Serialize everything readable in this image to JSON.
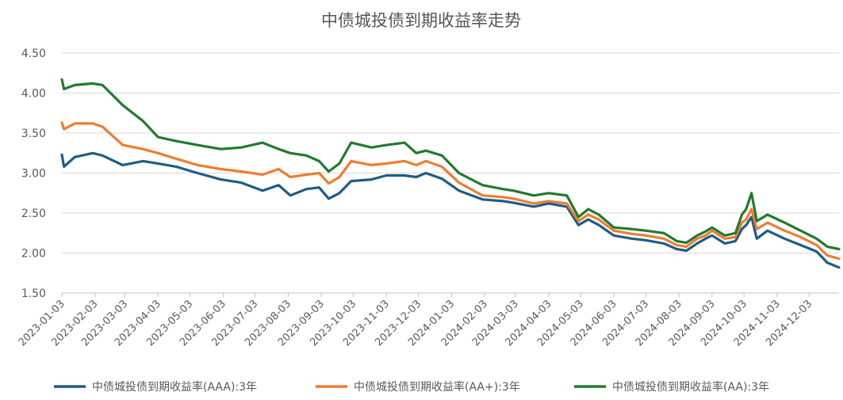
{
  "chart_data": {
    "type": "line",
    "title": "中债城投债到期收益率走势",
    "xlabel": "",
    "ylabel": "",
    "ylim": [
      1.5,
      4.5
    ],
    "yticks": [
      "1.50",
      "2.00",
      "2.50",
      "3.00",
      "3.50",
      "4.00",
      "4.50"
    ],
    "grid": true,
    "legend_position": "bottom",
    "x_tick_labels": [
      "2023-01-03",
      "2023-02-03",
      "2023-03-03",
      "2023-04-03",
      "2023-05-03",
      "2023-06-03",
      "2023-07-03",
      "2023-08-03",
      "2023-09-03",
      "2023-10-03",
      "2023-11-03",
      "2023-12-03",
      "2024-01-03",
      "2024-02-03",
      "2024-03-03",
      "2024-04-03",
      "2024-05-03",
      "2024-06-03",
      "2024-07-03",
      "2024-08-03",
      "2024-09-03",
      "2024-10-03",
      "2024-11-03",
      "2024-12-03"
    ],
    "x": [
      "2023-01-03",
      "2023-01-05",
      "2023-01-15",
      "2023-02-01",
      "2023-02-10",
      "2023-03-01",
      "2023-03-20",
      "2023-04-03",
      "2023-04-20",
      "2023-05-10",
      "2023-06-01",
      "2023-06-20",
      "2023-07-10",
      "2023-07-25",
      "2023-08-05",
      "2023-08-20",
      "2023-09-01",
      "2023-09-10",
      "2023-09-20",
      "2023-10-01",
      "2023-10-20",
      "2023-11-03",
      "2023-11-20",
      "2023-12-01",
      "2023-12-10",
      "2023-12-25",
      "2024-01-10",
      "2024-02-01",
      "2024-02-20",
      "2024-03-01",
      "2024-03-20",
      "2024-04-03",
      "2024-04-20",
      "2024-05-01",
      "2024-05-10",
      "2024-05-20",
      "2024-06-03",
      "2024-06-20",
      "2024-07-03",
      "2024-07-20",
      "2024-08-01",
      "2024-08-10",
      "2024-08-20",
      "2024-08-28",
      "2024-09-03",
      "2024-09-15",
      "2024-09-25",
      "2024-10-01",
      "2024-10-05",
      "2024-10-10",
      "2024-10-15",
      "2024-10-25",
      "2024-11-10",
      "2024-11-25",
      "2024-12-10",
      "2024-12-20",
      "2024-12-31"
    ],
    "series": [
      {
        "name": "中债城投债到期收益率(AAA):3年",
        "color": "#1f5c85",
        "values": [
          3.23,
          3.08,
          3.2,
          3.25,
          3.22,
          3.1,
          3.15,
          3.12,
          3.08,
          3.0,
          2.92,
          2.88,
          2.78,
          2.85,
          2.72,
          2.8,
          2.82,
          2.68,
          2.75,
          2.9,
          2.92,
          2.97,
          2.97,
          2.95,
          3.0,
          2.93,
          2.78,
          2.67,
          2.65,
          2.63,
          2.58,
          2.62,
          2.58,
          2.35,
          2.42,
          2.35,
          2.22,
          2.18,
          2.16,
          2.12,
          2.05,
          2.03,
          2.12,
          2.18,
          2.22,
          2.12,
          2.15,
          2.3,
          2.35,
          2.45,
          2.18,
          2.28,
          2.18,
          2.1,
          2.02,
          1.88,
          1.82
        ]
      },
      {
        "name": "中债城投债到期收益率(AA+):3年",
        "color": "#ed7d31",
        "values": [
          3.63,
          3.55,
          3.62,
          3.62,
          3.58,
          3.35,
          3.3,
          3.25,
          3.18,
          3.1,
          3.05,
          3.02,
          2.98,
          3.05,
          2.95,
          2.98,
          3.0,
          2.87,
          2.95,
          3.15,
          3.1,
          3.12,
          3.15,
          3.1,
          3.15,
          3.08,
          2.88,
          2.72,
          2.7,
          2.68,
          2.62,
          2.65,
          2.62,
          2.4,
          2.48,
          2.42,
          2.28,
          2.24,
          2.22,
          2.18,
          2.1,
          2.08,
          2.18,
          2.22,
          2.28,
          2.18,
          2.2,
          2.38,
          2.42,
          2.55,
          2.3,
          2.38,
          2.28,
          2.2,
          2.1,
          1.97,
          1.93
        ]
      },
      {
        "name": "中债城投债到期收益率(AA):3年",
        "color": "#217a2e",
        "values": [
          4.17,
          4.05,
          4.1,
          4.12,
          4.1,
          3.85,
          3.65,
          3.45,
          3.4,
          3.35,
          3.3,
          3.32,
          3.38,
          3.3,
          3.25,
          3.22,
          3.15,
          3.02,
          3.12,
          3.38,
          3.32,
          3.35,
          3.38,
          3.25,
          3.28,
          3.22,
          3.0,
          2.85,
          2.8,
          2.78,
          2.72,
          2.75,
          2.72,
          2.45,
          2.55,
          2.48,
          2.32,
          2.3,
          2.28,
          2.25,
          2.15,
          2.13,
          2.22,
          2.27,
          2.32,
          2.22,
          2.25,
          2.48,
          2.55,
          2.75,
          2.4,
          2.48,
          2.38,
          2.28,
          2.18,
          2.08,
          2.05
        ]
      }
    ]
  }
}
